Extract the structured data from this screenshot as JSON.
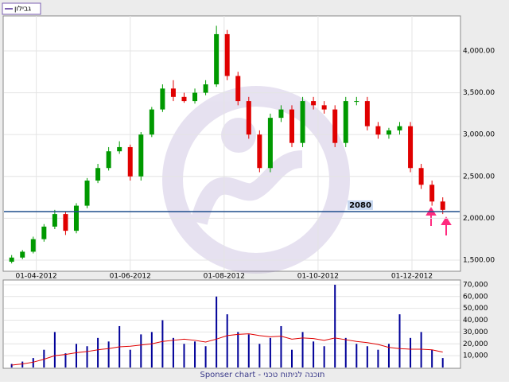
{
  "header": {
    "legend": "גבילון"
  },
  "footer": "Sponser chart - תוכנה לניתוח טכני",
  "chart_data": [
    {
      "type": "candlestick",
      "x": [
        "16-03-2012",
        "23-03-2012",
        "30-03-2012",
        "06-04-2012",
        "13-04-2012",
        "20-04-2012",
        "27-04-2012",
        "04-05-2012",
        "11-05-2012",
        "18-05-2012",
        "25-05-2012",
        "01-06-2012",
        "08-06-2012",
        "15-06-2012",
        "22-06-2012",
        "29-06-2012",
        "06-07-2012",
        "13-07-2012",
        "20-07-2012",
        "27-07-2012",
        "03-08-2012",
        "10-08-2012",
        "17-08-2012",
        "24-08-2012",
        "31-08-2012",
        "07-09-2012",
        "14-09-2012",
        "21-09-2012",
        "28-09-2012",
        "05-10-2012",
        "12-10-2012",
        "19-10-2012",
        "26-10-2012",
        "02-11-2012",
        "09-11-2012",
        "16-11-2012",
        "23-11-2012",
        "30-11-2012",
        "07-12-2012",
        "14-12-2012",
        "21-12-2012"
      ],
      "open": [
        1480,
        1530,
        1600,
        1750,
        1900,
        2050,
        1850,
        2150,
        2450,
        2600,
        2800,
        2850,
        2500,
        3000,
        3300,
        3550,
        3450,
        3400,
        3500,
        3600,
        4200,
        3700,
        3400,
        3000,
        2600,
        3200,
        3300,
        2900,
        3400,
        3350,
        3300,
        2900,
        3400,
        3400,
        3100,
        3000,
        3050,
        3100,
        2600,
        2400,
        2200
      ],
      "high": [
        1560,
        1620,
        1780,
        1930,
        2100,
        2080,
        2180,
        2480,
        2650,
        2850,
        2920,
        2880,
        3030,
        3330,
        3600,
        3650,
        3500,
        3550,
        3650,
        4300,
        4250,
        3750,
        3450,
        3050,
        3250,
        3350,
        3350,
        3450,
        3450,
        3400,
        3350,
        3450,
        3450,
        3450,
        3150,
        3080,
        3150,
        3150,
        2650,
        2450,
        2250
      ],
      "low": [
        1460,
        1510,
        1580,
        1720,
        1870,
        1800,
        1820,
        2120,
        2420,
        2570,
        2770,
        2450,
        2450,
        2970,
        3270,
        3400,
        3380,
        3370,
        3470,
        3570,
        3650,
        3350,
        2950,
        2550,
        2550,
        3150,
        2850,
        2850,
        3300,
        3250,
        2850,
        2850,
        3350,
        3050,
        2950,
        2950,
        3000,
        2550,
        2350,
        2150,
        2050
      ],
      "close": [
        1530,
        1600,
        1750,
        1900,
        2050,
        1850,
        2150,
        2450,
        2600,
        2800,
        2850,
        2500,
        3000,
        3300,
        3550,
        3450,
        3400,
        3500,
        3600,
        4200,
        3700,
        3400,
        3000,
        2600,
        3200,
        3300,
        2900,
        3400,
        3350,
        3300,
        2900,
        3400,
        3400,
        3100,
        3000,
        3050,
        3100,
        2600,
        2400,
        2200,
        2100
      ],
      "up_color": "#009900",
      "down_color": "#e00000",
      "xlim": [
        "11-03-2012",
        "01-01-2013"
      ],
      "xticks": [
        "01-04-2012",
        "01-06-2012",
        "01-08-2012",
        "01-10-2012",
        "01-12-2012"
      ],
      "ylim": [
        1376,
        4418
      ],
      "yticks": [
        {
          "value": 1500,
          "label": "1,500.00"
        },
        {
          "value": 2000,
          "label": "2,000.00"
        },
        {
          "value": 2500,
          "label": "2,500.00"
        },
        {
          "value": 3000,
          "label": "3,000.00"
        },
        {
          "value": 3500,
          "label": "3,500.00"
        },
        {
          "value": 4000,
          "label": "4,000.00"
        }
      ],
      "hline": {
        "value": 2080,
        "color": "#1f4e8c"
      },
      "grid": true
    },
    {
      "type": "bar",
      "series": [
        {
          "values": [
            3000,
            5000,
            8000,
            15000,
            30000,
            12000,
            20000,
            18000,
            25000,
            22000,
            35000,
            15000,
            28000,
            30000,
            40000,
            25000,
            20000,
            22000,
            18000,
            60000,
            45000,
            30000,
            28000,
            20000,
            25000,
            35000,
            15000,
            30000,
            22000,
            18000,
            70000,
            25000,
            20000,
            18000,
            15000,
            20000,
            45000,
            25000,
            30000,
            15000,
            8000
          ],
          "color": "#000099"
        },
        {
          "type": "line",
          "values": [
            2000,
            3000,
            4500,
            7000,
            10000,
            11000,
            12500,
            13500,
            15000,
            16000,
            17500,
            18000,
            19000,
            20000,
            22000,
            23000,
            24000,
            23000,
            21500,
            24000,
            27000,
            28000,
            28500,
            27000,
            26000,
            26500,
            24000,
            25000,
            24500,
            23000,
            25000,
            23500,
            22000,
            21000,
            19500,
            17000,
            16000,
            15500,
            15500,
            15000,
            13000
          ],
          "color": "#e00000"
        }
      ],
      "ylim": [
        0,
        74000
      ],
      "yticks": [
        {
          "value": 10000,
          "label": "10,000"
        },
        {
          "value": 20000,
          "label": "20,000"
        },
        {
          "value": 30000,
          "label": "30,000"
        },
        {
          "value": 40000,
          "label": "40,000"
        },
        {
          "value": 50000,
          "label": "50,000"
        },
        {
          "value": 60000,
          "label": "60,000"
        },
        {
          "value": 70000,
          "label": "70,000"
        }
      ],
      "grid": true
    }
  ]
}
